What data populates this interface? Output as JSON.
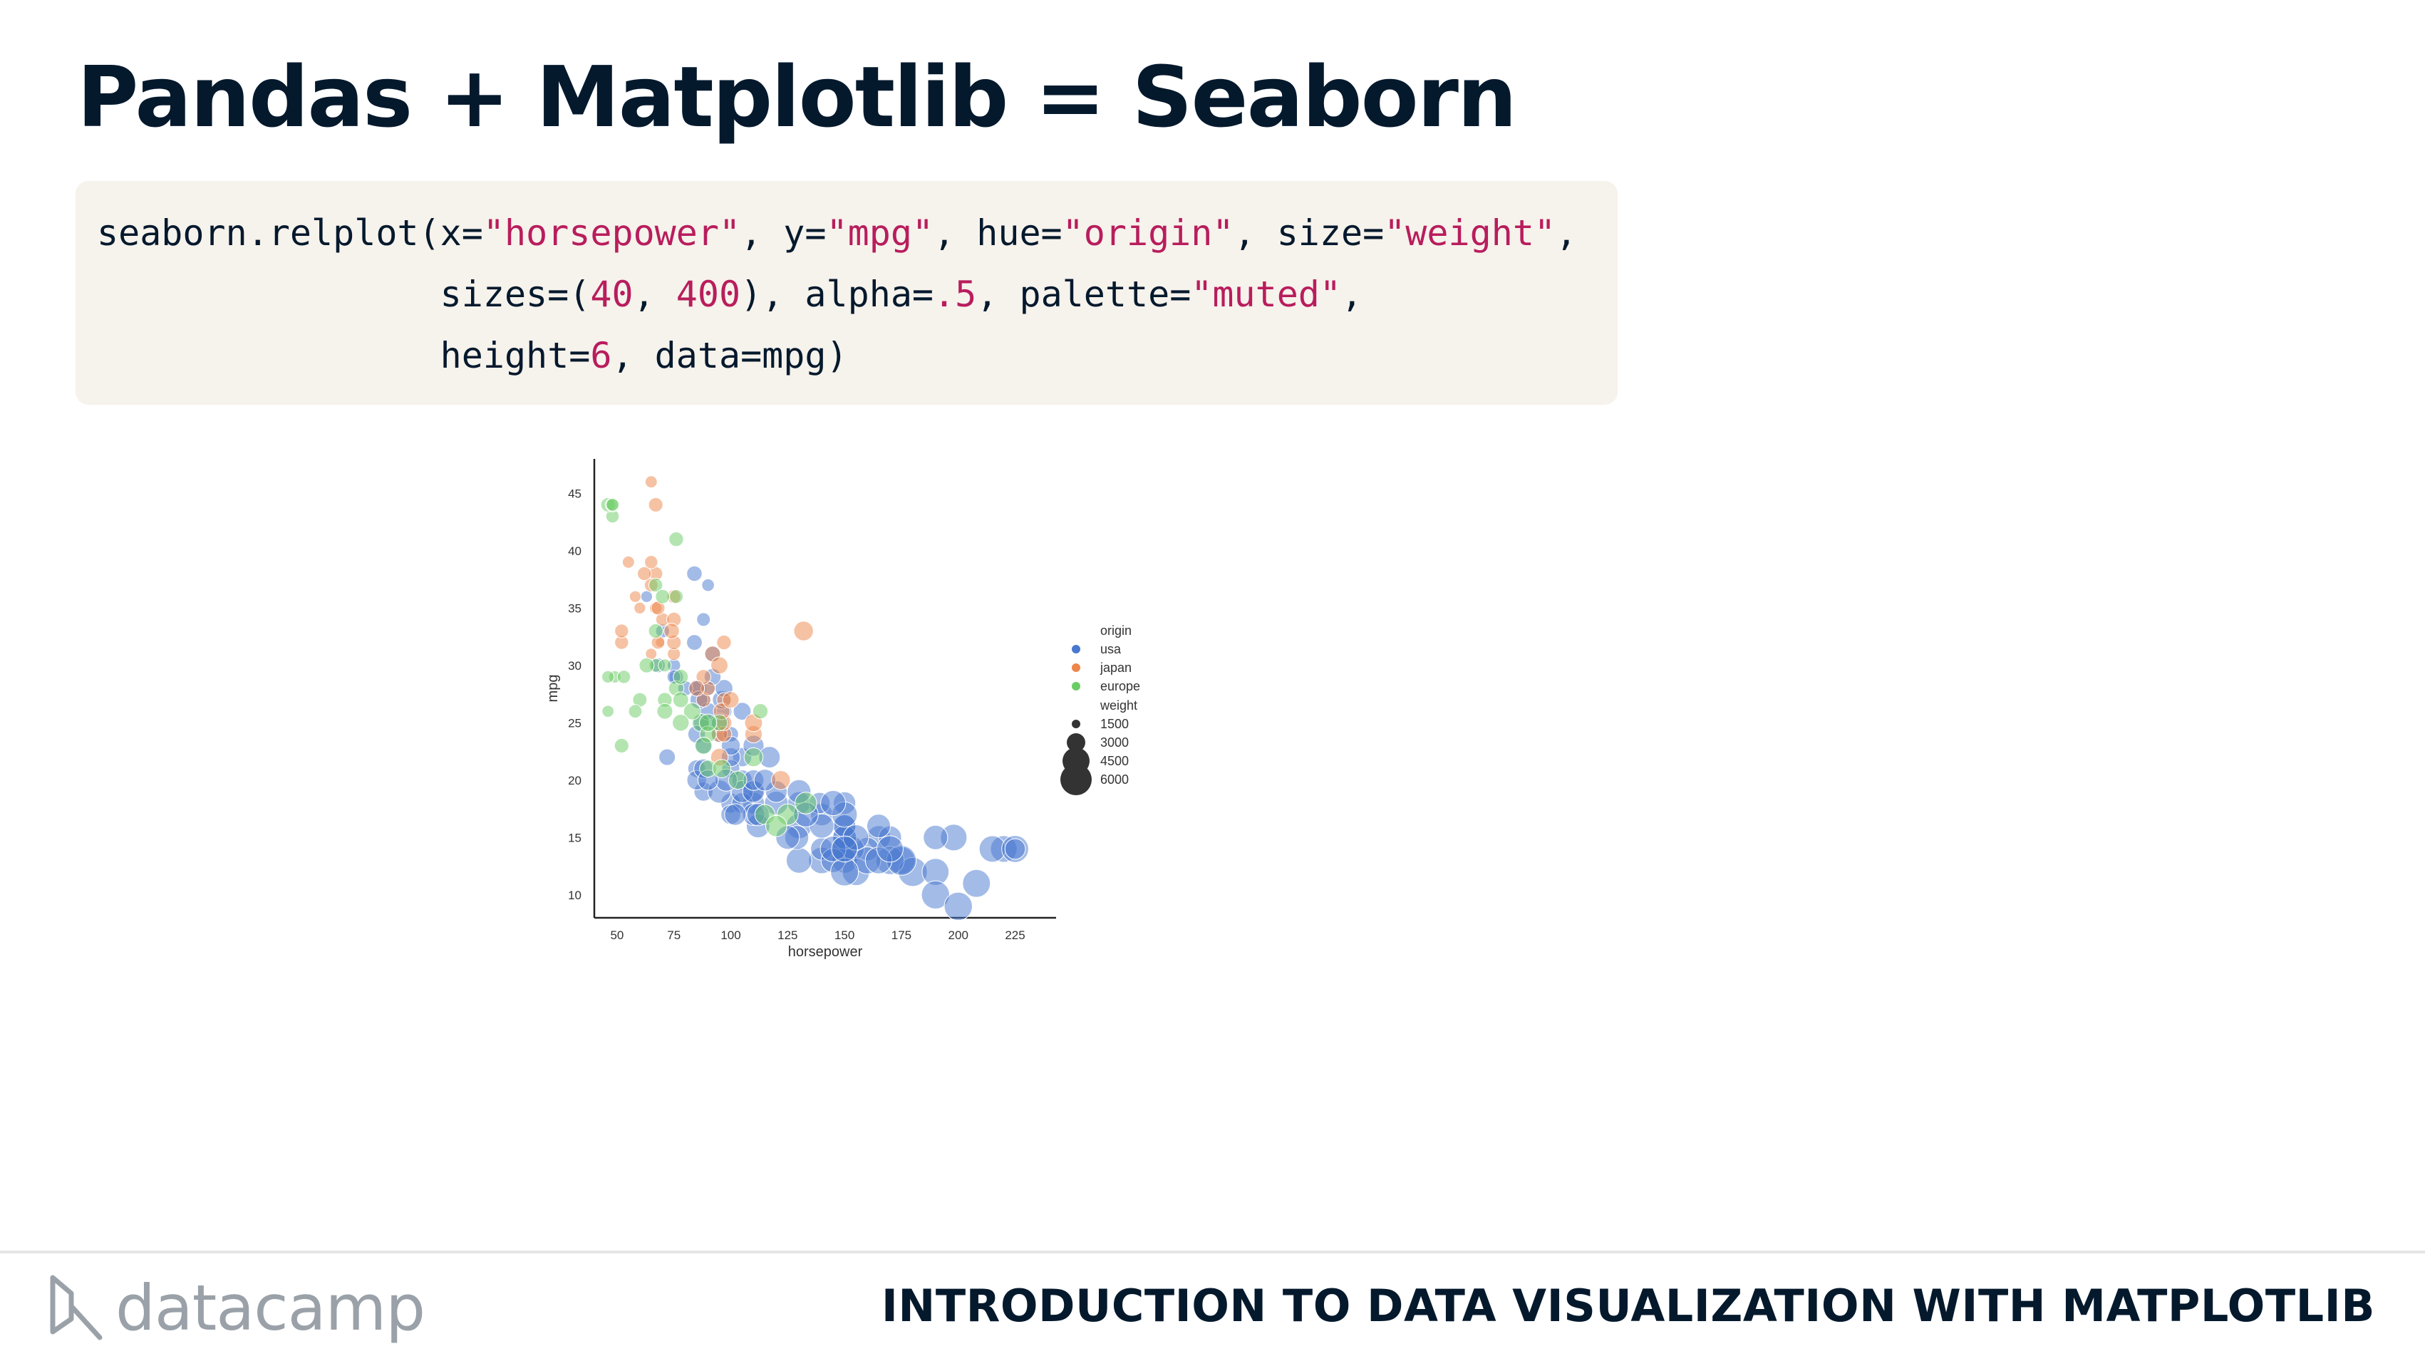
{
  "slide": {
    "title": "Pandas + Matplotlib = Seaborn"
  },
  "code": {
    "lines": [
      [
        {
          "t": "seaborn.relplot(x=",
          "k": "p"
        },
        {
          "t": "\"horsepower\"",
          "k": "s"
        },
        {
          "t": ", y=",
          "k": "p"
        },
        {
          "t": "\"mpg\"",
          "k": "s"
        },
        {
          "t": ", hue=",
          "k": "p"
        },
        {
          "t": "\"origin\"",
          "k": "s"
        },
        {
          "t": ", size=",
          "k": "p"
        },
        {
          "t": "\"weight\"",
          "k": "s"
        },
        {
          "t": ",",
          "k": "p"
        }
      ],
      [
        {
          "t": "                sizes=(",
          "k": "p"
        },
        {
          "t": "40",
          "k": "n"
        },
        {
          "t": ", ",
          "k": "p"
        },
        {
          "t": "400",
          "k": "n"
        },
        {
          "t": "), alpha=",
          "k": "p"
        },
        {
          "t": ".5",
          "k": "n"
        },
        {
          "t": ", palette=",
          "k": "p"
        },
        {
          "t": "\"muted\"",
          "k": "s"
        },
        {
          "t": ",",
          "k": "p"
        }
      ],
      [
        {
          "t": "                height=",
          "k": "p"
        },
        {
          "t": "6",
          "k": "n"
        },
        {
          "t": ", data=mpg)",
          "k": "p"
        }
      ]
    ]
  },
  "chart_data": {
    "type": "scatter",
    "xlabel": "horsepower",
    "ylabel": "mpg",
    "xlim": [
      40,
      243
    ],
    "ylim": [
      8,
      48
    ],
    "xticks": [
      "50",
      "75",
      "100",
      "125",
      "150",
      "175",
      "200",
      "225"
    ],
    "yticks": [
      "10",
      "15",
      "20",
      "25",
      "30",
      "35",
      "40",
      "45"
    ],
    "grid": false,
    "legend_placement": "right",
    "hue_title": "origin",
    "size_title": "weight",
    "hue_legend": [
      {
        "label": "usa",
        "color": "#4878d0"
      },
      {
        "label": "japan",
        "color": "#ee854a"
      },
      {
        "label": "europe",
        "color": "#6acc64"
      }
    ],
    "size_legend": [
      "1500",
      "3000",
      "4500",
      "6000"
    ],
    "alpha": 0.5,
    "series": [
      {
        "name": "usa",
        "color": "#4878d0",
        "points": [
          [
            130,
            18,
            3504
          ],
          [
            165,
            15,
            3693
          ],
          [
            150,
            18,
            3436
          ],
          [
            150,
            16,
            3433
          ],
          [
            140,
            17,
            3449
          ],
          [
            198,
            15,
            4341
          ],
          [
            220,
            14,
            4354
          ],
          [
            215,
            14,
            4312
          ],
          [
            225,
            14,
            4425
          ],
          [
            190,
            15,
            3850
          ],
          [
            170,
            15,
            3563
          ],
          [
            160,
            14,
            3609
          ],
          [
            150,
            15,
            3761
          ],
          [
            225,
            14,
            3086
          ],
          [
            95,
            24,
            2372
          ],
          [
            105,
            22,
            2833
          ],
          [
            100,
            18,
            2962
          ],
          [
            85,
            21,
            2587
          ],
          [
            88,
            27,
            2130
          ],
          [
            165,
            16,
            3693
          ],
          [
            175,
            13,
            4464
          ],
          [
            153,
            14,
            4154
          ],
          [
            150,
            14,
            4096
          ],
          [
            180,
            12,
            4955
          ],
          [
            170,
            13,
            4746
          ],
          [
            175,
            13,
            5140
          ],
          [
            110,
            18,
            3288
          ],
          [
            72,
            22,
            2408
          ],
          [
            100,
            21,
            2634
          ],
          [
            88,
            19,
            2807
          ],
          [
            86,
            28,
            2279
          ],
          [
            90,
            25,
            2264
          ],
          [
            95,
            19,
            3574
          ],
          [
            85,
            20,
            2905
          ],
          [
            140,
            13,
            4294
          ],
          [
            150,
            13,
            4077
          ],
          [
            208,
            11,
            4633
          ],
          [
            155,
            12,
            4502
          ],
          [
            160,
            13,
            4456
          ],
          [
            190,
            12,
            4422
          ],
          [
            97,
            26,
            2285
          ],
          [
            150,
            14,
            4082
          ],
          [
            130,
            13,
            4098
          ],
          [
            140,
            14,
            3431
          ],
          [
            150,
            15,
            3672
          ],
          [
            112,
            16,
            3645
          ],
          [
            76,
            29,
            2130
          ],
          [
            87,
            25,
            2310
          ],
          [
            190,
            10,
            4732
          ],
          [
            200,
            9,
            4732
          ],
          [
            90,
            28,
            2164
          ],
          [
            100,
            24,
            2254
          ],
          [
            75,
            30,
            1985
          ],
          [
            110,
            19,
            3021
          ],
          [
            105,
            18,
            3121
          ],
          [
            100,
            17,
            2945
          ],
          [
            150,
            16,
            3434
          ],
          [
            145,
            13,
            3821
          ],
          [
            105,
            20,
            3020
          ],
          [
            85,
            24,
            2570
          ],
          [
            90,
            26,
            2545
          ],
          [
            100,
            22,
            2789
          ],
          [
            110,
            17,
            3365
          ],
          [
            130,
            16,
            4060
          ],
          [
            145,
            14,
            4140
          ],
          [
            150,
            12,
            4664
          ],
          [
            105,
            19,
            3353
          ],
          [
            75,
            29,
            2035
          ],
          [
            88,
            23,
            2370
          ],
          [
            139,
            18,
            3205
          ],
          [
            129,
            15,
            3725
          ],
          [
            102,
            17,
            3270
          ],
          [
            85,
            28,
            2380
          ],
          [
            63,
            36,
            1800
          ],
          [
            70,
            33,
            2045
          ],
          [
            98,
            20,
            3380
          ],
          [
            110,
            19,
            3360
          ],
          [
            120,
            18,
            3660
          ],
          [
            140,
            16,
            3840
          ],
          [
            150,
            17,
            4080
          ],
          [
            84,
            32,
            2290
          ],
          [
            96,
            27,
            2720
          ],
          [
            105,
            26,
            2600
          ],
          [
            92,
            31,
            2295
          ],
          [
            88,
            34,
            2020
          ],
          [
            90,
            37,
            1900
          ],
          [
            84,
            38,
            2255
          ],
          [
            110,
            23,
            3150
          ],
          [
            95,
            25,
            2870
          ],
          [
            80,
            28,
            2190
          ],
          [
            165,
            13,
            4380
          ],
          [
            130,
            19,
            3700
          ],
          [
            125,
            15,
            3690
          ],
          [
            133,
            17,
            3940
          ],
          [
            155,
            15,
            4080
          ],
          [
            150,
            14,
            4220
          ],
          [
            117,
            22,
            3240
          ],
          [
            170,
            14,
            4300
          ],
          [
            145,
            18,
            4010
          ],
          [
            97,
            28,
            2600
          ],
          [
            88,
            21,
            2880
          ],
          [
            92,
            29,
            2450
          ],
          [
            68,
            30,
            2155
          ],
          [
            110,
            20,
            3100
          ],
          [
            120,
            19,
            3280
          ],
          [
            115,
            20,
            3300
          ],
          [
            90,
            20,
            3050
          ],
          [
            86,
            27,
            2600
          ],
          [
            100,
            23,
            2780
          ],
          [
            112,
            17,
            3460
          ]
        ]
      },
      {
        "name": "japan",
        "color": "#ee854a",
        "points": [
          [
            95,
            24,
            2372
          ],
          [
            88,
            27,
            2130
          ],
          [
            97,
            27,
            2130
          ],
          [
            65,
            31,
            1773
          ],
          [
            69,
            32,
            1613
          ],
          [
            97,
            24,
            2279
          ],
          [
            52,
            32,
            2050
          ],
          [
            75,
            31,
            1950
          ],
          [
            90,
            28,
            2100
          ],
          [
            110,
            24,
            2540
          ],
          [
            60,
            35,
            1800
          ],
          [
            70,
            34,
            2000
          ],
          [
            67,
            38,
            2050
          ],
          [
            67,
            35,
            1900
          ],
          [
            65,
            37,
            2019
          ],
          [
            62,
            38,
            2050
          ],
          [
            68,
            32,
            1990
          ],
          [
            75,
            34,
            2130
          ],
          [
            97,
            25,
            2300
          ],
          [
            95,
            22,
            2570
          ],
          [
            132,
            33,
            2900
          ],
          [
            88,
            29,
            2165
          ],
          [
            75,
            32,
            2125
          ],
          [
            52,
            33,
            2050
          ],
          [
            65,
            46,
            1850
          ],
          [
            67,
            44,
            2120
          ],
          [
            74,
            33,
            2250
          ],
          [
            65,
            39,
            1975
          ],
          [
            92,
            31,
            2300
          ],
          [
            122,
            20,
            2800
          ],
          [
            96,
            26,
            2450
          ],
          [
            58,
            36,
            1800
          ],
          [
            97,
            32,
            2150
          ],
          [
            75,
            36,
            2050
          ],
          [
            110,
            25,
            2600
          ],
          [
            100,
            27,
            2400
          ],
          [
            68,
            35,
            2045
          ],
          [
            85,
            28,
            2290
          ],
          [
            55,
            39,
            1850
          ],
          [
            95,
            30,
            2500
          ]
        ]
      },
      {
        "name": "europe",
        "color": "#6acc64",
        "points": [
          [
            46,
            26,
            1835
          ],
          [
            87,
            25,
            2672
          ],
          [
            90,
            24,
            2430
          ],
          [
            95,
            25,
            2375
          ],
          [
            113,
            26,
            2234
          ],
          [
            48,
            43,
            1985
          ],
          [
            46,
            44,
            2110
          ],
          [
            49,
            29,
            1867
          ],
          [
            67,
            30,
            2000
          ],
          [
            71,
            27,
            2150
          ],
          [
            53,
            29,
            1980
          ],
          [
            76,
            28,
            2245
          ],
          [
            46,
            29,
            1880
          ],
          [
            48,
            44,
            2085
          ],
          [
            52,
            23,
            2130
          ],
          [
            60,
            27,
            2100
          ],
          [
            67,
            33,
            2130
          ],
          [
            76,
            41,
            2150
          ],
          [
            78,
            27,
            2300
          ],
          [
            90,
            21,
            2500
          ],
          [
            71,
            30,
            1950
          ],
          [
            78,
            29,
            2200
          ],
          [
            83,
            26,
            2500
          ],
          [
            90,
            25,
            2560
          ],
          [
            103,
            20,
            2700
          ],
          [
            115,
            17,
            3000
          ],
          [
            125,
            17,
            3200
          ],
          [
            76,
            36,
            2040
          ],
          [
            67,
            37,
            2050
          ],
          [
            110,
            22,
            2800
          ],
          [
            78,
            25,
            2450
          ],
          [
            96,
            21,
            2700
          ],
          [
            58,
            26,
            2000
          ],
          [
            63,
            30,
            2200
          ],
          [
            70,
            36,
            2100
          ],
          [
            48,
            44,
            1900
          ],
          [
            71,
            26,
            2300
          ],
          [
            120,
            16,
            3200
          ],
          [
            133,
            18,
            3300
          ],
          [
            88,
            23,
            2500
          ]
        ]
      }
    ]
  },
  "footer": {
    "logo_text": "datacamp",
    "course_title": "INTRODUCTION TO DATA VISUALIZATION WITH MATPLOTLIB"
  }
}
